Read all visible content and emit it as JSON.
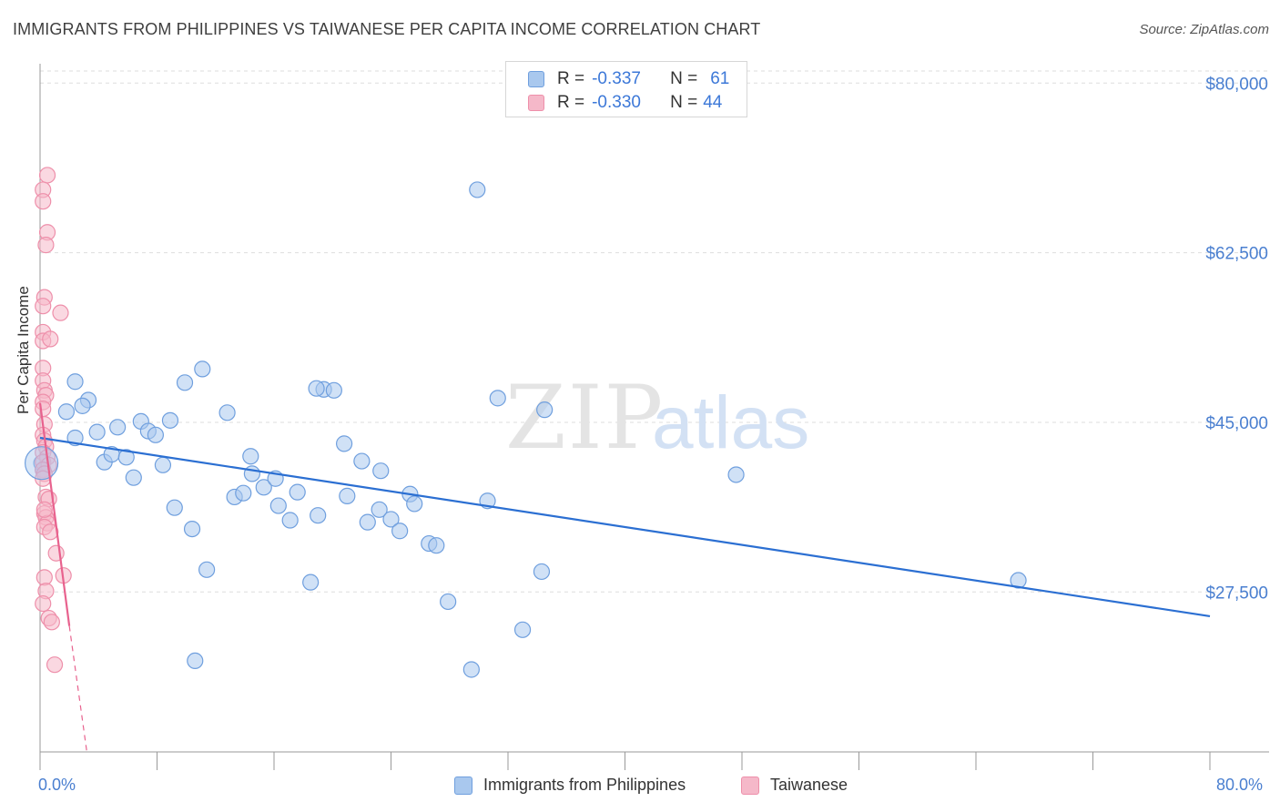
{
  "title": "IMMIGRANTS FROM PHILIPPINES VS TAIWANESE PER CAPITA INCOME CORRELATION CHART",
  "source": "Source: ZipAtlas.com",
  "watermark": {
    "zip": "ZIP",
    "atlas": "atlas"
  },
  "legend_stats": [
    {
      "r_label": "R =",
      "r_value": "-0.337",
      "n_label": "N =",
      "n_value": "61"
    },
    {
      "r_label": "R =",
      "r_value": "-0.330",
      "n_label": "N =",
      "n_value": "44"
    }
  ],
  "x_min_label": "0.0%",
  "x_max_label": "80.0%",
  "colors": {
    "blue_fill": "#a9c8ee",
    "blue_stroke": "#6f9fde",
    "blue_line": "#2b6fd2",
    "pink_fill": "#f5b8c9",
    "pink_stroke": "#ee8faa",
    "pink_line": "#e8628e",
    "tick_text": "#4a7fd0",
    "grid": "#dddddd"
  },
  "chart_data": {
    "type": "scatter",
    "title": "IMMIGRANTS FROM PHILIPPINES VS TAIWANESE PER CAPITA INCOME CORRELATION CHART",
    "xlabel": "",
    "ylabel": "Per Capita Income",
    "xlim": [
      0,
      80
    ],
    "ylim": [
      11000,
      82000
    ],
    "y_ticks": [
      {
        "value": 27500,
        "label": "$27,500"
      },
      {
        "value": 45000,
        "label": "$45,000"
      },
      {
        "value": 62500,
        "label": "$62,500"
      },
      {
        "value": 80000,
        "label": "$80,000"
      }
    ],
    "x_ticks": [
      0,
      8,
      16,
      24,
      32,
      40,
      48,
      56,
      64,
      72,
      80
    ],
    "grid": "horizontal dashed",
    "legend": "bottom-center",
    "series": [
      {
        "name": "Immigrants from Philippines",
        "color": "blue",
        "r": -0.337,
        "n": 61,
        "points": [
          [
            0.1,
            40.8
          ],
          [
            2.4,
            49.2
          ],
          [
            1.8,
            46.1
          ],
          [
            3.3,
            47.3
          ],
          [
            2.9,
            46.7
          ],
          [
            2.4,
            43.4
          ],
          [
            3.9,
            44.0
          ],
          [
            5.3,
            44.5
          ],
          [
            4.4,
            40.9
          ],
          [
            4.9,
            41.7
          ],
          [
            5.9,
            41.4
          ],
          [
            6.4,
            39.3
          ],
          [
            6.9,
            45.1
          ],
          [
            7.4,
            44.1
          ],
          [
            7.9,
            43.7
          ],
          [
            8.4,
            40.6
          ],
          [
            8.9,
            45.2
          ],
          [
            9.9,
            49.1
          ],
          [
            9.2,
            36.2
          ],
          [
            11.1,
            50.5
          ],
          [
            12.8,
            46.0
          ],
          [
            10.4,
            34.0
          ],
          [
            11.4,
            29.8
          ],
          [
            13.3,
            37.3
          ],
          [
            14.5,
            39.7
          ],
          [
            14.4,
            41.5
          ],
          [
            13.9,
            37.7
          ],
          [
            15.3,
            38.3
          ],
          [
            16.1,
            39.2
          ],
          [
            16.3,
            36.4
          ],
          [
            17.6,
            37.8
          ],
          [
            17.1,
            34.9
          ],
          [
            18.5,
            28.5
          ],
          [
            19.0,
            35.4
          ],
          [
            19.4,
            48.4
          ],
          [
            20.1,
            48.3
          ],
          [
            20.8,
            42.8
          ],
          [
            21.0,
            37.4
          ],
          [
            22.0,
            41.0
          ],
          [
            22.4,
            34.7
          ],
          [
            23.2,
            36.0
          ],
          [
            23.3,
            40.0
          ],
          [
            24.0,
            35.0
          ],
          [
            24.6,
            33.8
          ],
          [
            25.3,
            37.6
          ],
          [
            25.6,
            36.6
          ],
          [
            26.6,
            32.5
          ],
          [
            27.1,
            32.3
          ],
          [
            27.9,
            26.5
          ],
          [
            30.6,
            36.9
          ],
          [
            29.5,
            19.5
          ],
          [
            31.3,
            47.5
          ],
          [
            29.9,
            69.0
          ],
          [
            33.0,
            23.6
          ],
          [
            34.5,
            46.3
          ],
          [
            34.3,
            29.6
          ],
          [
            47.6,
            39.6
          ],
          [
            66.9,
            28.7
          ],
          [
            10.6,
            20.4
          ],
          [
            0.2,
            40.1
          ],
          [
            18.9,
            48.5
          ]
        ],
        "trend": {
          "x": [
            0,
            80
          ],
          "y": [
            43.4,
            25.0
          ]
        }
      },
      {
        "name": "Taiwanese",
        "color": "pink",
        "r": -0.33,
        "n": 44,
        "points": [
          [
            0.5,
            70.5
          ],
          [
            0.2,
            69.0
          ],
          [
            0.2,
            67.8
          ],
          [
            0.5,
            64.6
          ],
          [
            0.4,
            63.3
          ],
          [
            0.3,
            57.9
          ],
          [
            0.2,
            57.0
          ],
          [
            1.4,
            56.3
          ],
          [
            0.2,
            54.3
          ],
          [
            0.2,
            53.4
          ],
          [
            0.7,
            53.6
          ],
          [
            0.2,
            50.6
          ],
          [
            0.2,
            49.3
          ],
          [
            0.3,
            48.3
          ],
          [
            0.4,
            47.8
          ],
          [
            0.2,
            47.1
          ],
          [
            0.2,
            46.4
          ],
          [
            0.3,
            44.8
          ],
          [
            0.2,
            43.7
          ],
          [
            0.3,
            43.1
          ],
          [
            0.4,
            42.5
          ],
          [
            0.2,
            41.9
          ],
          [
            0.5,
            41.4
          ],
          [
            0.2,
            40.9
          ],
          [
            0.6,
            40.6
          ],
          [
            0.2,
            40.1
          ],
          [
            0.3,
            39.7
          ],
          [
            0.2,
            39.2
          ],
          [
            0.4,
            37.3
          ],
          [
            0.6,
            37.1
          ],
          [
            0.3,
            35.6
          ],
          [
            0.4,
            35.2
          ],
          [
            0.5,
            34.6
          ],
          [
            0.3,
            34.2
          ],
          [
            0.7,
            33.7
          ],
          [
            1.1,
            31.5
          ],
          [
            0.3,
            29.0
          ],
          [
            1.6,
            29.2
          ],
          [
            0.4,
            27.6
          ],
          [
            0.2,
            26.3
          ],
          [
            0.6,
            24.8
          ],
          [
            0.8,
            24.4
          ],
          [
            1.0,
            20.0
          ],
          [
            0.3,
            36.0
          ]
        ],
        "trend": {
          "x": [
            0,
            2.0
          ],
          "y": [
            47.0,
            24.0
          ]
        },
        "trend_dashed": {
          "x": [
            2.0,
            3.2
          ],
          "y": [
            24.0,
            11.0
          ]
        }
      }
    ]
  }
}
